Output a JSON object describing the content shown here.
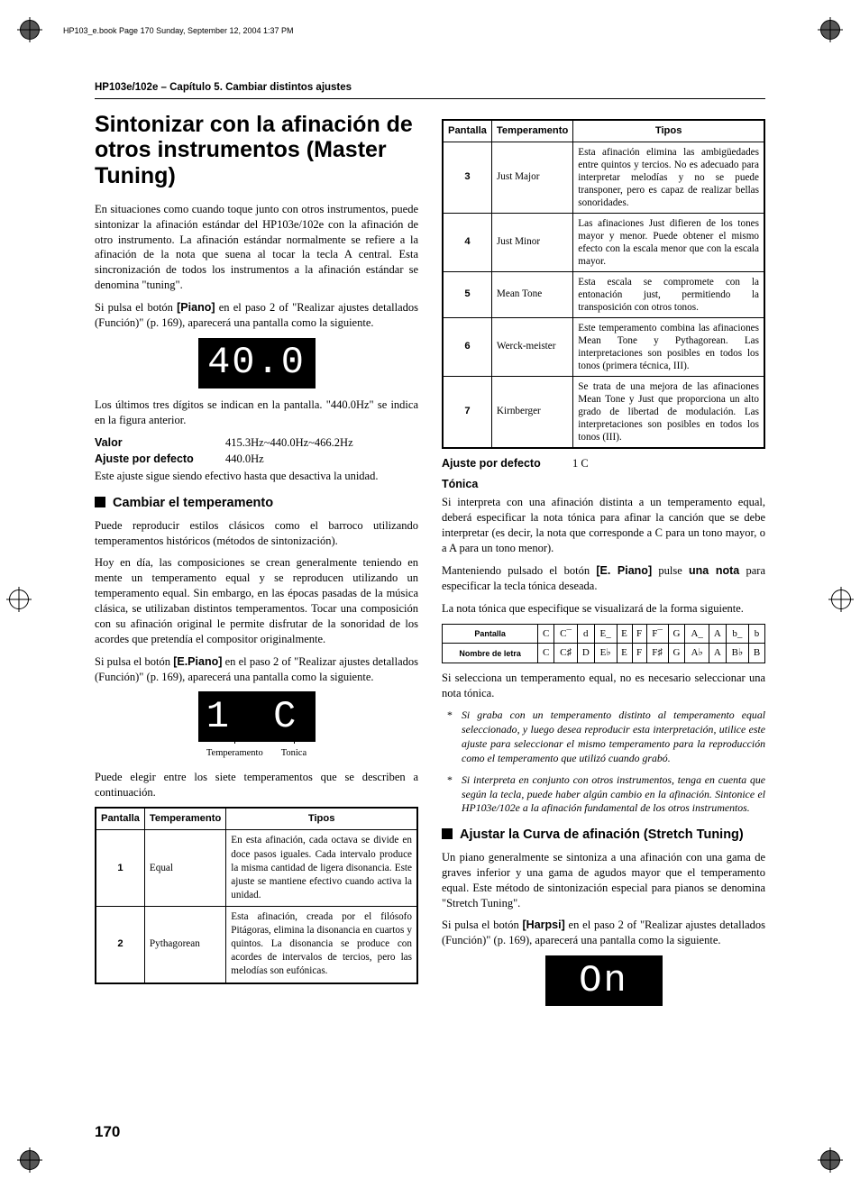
{
  "doc_header": "HP103_e.book  Page 170  Sunday, September 12, 2004  1:37 PM",
  "running_head": "HP103e/102e – Capítulo 5. Cambiar distintos ajustes",
  "title": "Sintonizar con la afinación de otros instrumentos (Master Tuning)",
  "intro_p1": "En situaciones como cuando toque junto con otros instrumentos, puede sintonizar la afinación estándar del HP103e/102e con la afinación de otro instrumento. La afinación estándar normalmente se refiere a la afinación de la nota que suena al tocar la tecla A central. Esta sincronización de todos los instrumentos a la afinación estándar se denomina \"tuning\".",
  "intro_p2_a": "Si pulsa el botón ",
  "intro_p2_btn": "[Piano]",
  "intro_p2_b": " en el paso 2 of \"Realizar ajustes detallados (Función)\" (p. 169), aparecerá una pantalla como la siguiente.",
  "display1": "40.0",
  "after_display1": "Los últimos tres dígitos se indican en la pantalla. \"440.0Hz\" se indica en la figura anterior.",
  "valor_label": "Valor",
  "valor_value": "415.3Hz~440.0Hz~466.2Hz",
  "ajuste_label": "Ajuste por defecto",
  "ajuste_value": "440.0Hz",
  "persist_note": "Este ajuste sigue siendo efectivo hasta que desactiva la unidad.",
  "temperament_heading": "Cambiar el temperamento",
  "temp_p1": "Puede reproducir estilos clásicos como el barroco utilizando temperamentos históricos (métodos de sintonización).",
  "temp_p2": "Hoy en día, las composiciones se crean generalmente teniendo en mente un temperamento equal y se reproducen utilizando un temperamento equal. Sin embargo, en las épocas pasadas de la música clásica, se utilizaban distintos temperamentos. Tocar una composición con su afinación original le permite disfrutar de la sonoridad de los acordes que pretendía el compositor originalmente.",
  "temp_p3_a": "Si pulsa el botón ",
  "temp_p3_btn": "[E.Piano]",
  "temp_p3_b": " en el paso 2 of \"Realizar ajustes detallados (Función)\" (p. 169), aparecerá una pantalla como la siguiente.",
  "display2": "1 C",
  "display2_label_left": "Temperamento",
  "display2_label_right": "Tonica",
  "temp_p4": "Puede elegir entre los siete temperamentos que se describen a continuación.",
  "table_headers": {
    "pantalla": "Pantalla",
    "temperamento": "Temperamento",
    "tipos": "Tipos"
  },
  "table_left": [
    {
      "p": "1",
      "t": "Equal",
      "d": "En esta afinación, cada octava se divide en doce pasos iguales. Cada intervalo produce la misma cantidad de ligera disonancia. Este ajuste se mantiene efectivo cuando activa la unidad."
    },
    {
      "p": "2",
      "t": "Pythagorean",
      "d": "Esta afinación, creada por el filósofo Pitágoras, elimina la disonancia en cuartos y quintos. La disonancia se produce con acordes de intervalos de tercios, pero las melodías son eufónicas."
    }
  ],
  "table_right": [
    {
      "p": "3",
      "t": "Just Major",
      "d": "Esta afinación elimina las ambigüedades entre quintos y tercios. No es adecuado para interpretar melodías y no se puede transponer, pero es capaz de realizar bellas sonoridades."
    },
    {
      "p": "4",
      "t": "Just Minor",
      "d": "Las afinaciones Just difieren de los tones mayor y menor. Puede obtener el mismo efecto con la escala menor que con la escala mayor."
    },
    {
      "p": "5",
      "t": "Mean Tone",
      "d": "Esta escala se compromete con la entonación just, permitiendo la transposición con otros tonos."
    },
    {
      "p": "6",
      "t": "Werck-meister",
      "d": "Este temperamento combina las afinaciones Mean Tone y Pythagorean. Las interpretaciones son posibles en todos los tonos (primera técnica, III)."
    },
    {
      "p": "7",
      "t": "Kirnberger",
      "d": "Se trata de una mejora de las afinaciones Mean Tone y Just que proporciona un alto grado de libertad de modulación. Las interpretaciones son posibles en todos los tonos (III)."
    }
  ],
  "ajuste2_label": "Ajuste por defecto",
  "ajuste2_value": "1 C",
  "tonica_heading": "Tónica",
  "tonica_p1": "Si interpreta con una afinación distinta a un temperamento equal, deberá especificar la nota tónica para afinar la canción que se debe interpretar (es decir, la nota que corresponde a C para un tono mayor, o a A para un tono menor).",
  "tonica_p2_a": "Manteniendo pulsado el botón ",
  "tonica_p2_btn": "[E. Piano]",
  "tonica_p2_b": " pulse ",
  "tonica_p2_bold": "una nota",
  "tonica_p2_c": " para especificar la tecla tónica deseada.",
  "tonica_p3": "La nota tónica que especifique se visualizará de la forma siguiente.",
  "tonic_table": {
    "row1_label": "Pantalla",
    "row1": [
      "C",
      "C¯",
      "d",
      "E_",
      "E",
      "F",
      "F¯",
      "G",
      "A_",
      "A",
      "b_",
      "b"
    ],
    "row2_label": "Nombre de letra",
    "row2": [
      "C",
      "C♯",
      "D",
      "E♭",
      "E",
      "F",
      "F♯",
      "G",
      "A♭",
      "A",
      "B♭",
      "B"
    ]
  },
  "tonica_p4": "Si selecciona un temperamento equal, no es necesario seleccionar una nota tónica.",
  "note1": "Si graba con un temperamento distinto al temperamento equal seleccionado, y luego desea reproducir esta interpretación, utilice este ajuste para seleccionar el mismo temperamento para la reproducción como el temperamento que utilizó cuando grabó.",
  "note2": "Si interpreta en conjunto con otros instrumentos, tenga en cuenta que según la tecla, puede haber algún cambio en la afinación. Sintonice el HP103e/102e a la afinación fundamental de los otros instrumentos.",
  "stretch_heading": "Ajustar la Curva de afinación (Stretch Tuning)",
  "stretch_p1": "Un piano generalmente se sintoniza a una afinación con una gama de graves inferior y una gama de agudos mayor que el temperamento equal. Este método de sintonización especial para pianos se denomina \"Stretch Tuning\".",
  "stretch_p2_a": "Si pulsa el botón ",
  "stretch_p2_btn": "[Harpsi]",
  "stretch_p2_b": " en el paso 2 of \"Realizar ajustes detallados (Función)\" (p. 169), aparecerá una pantalla como la siguiente.",
  "display3": "On",
  "page_number": "170"
}
